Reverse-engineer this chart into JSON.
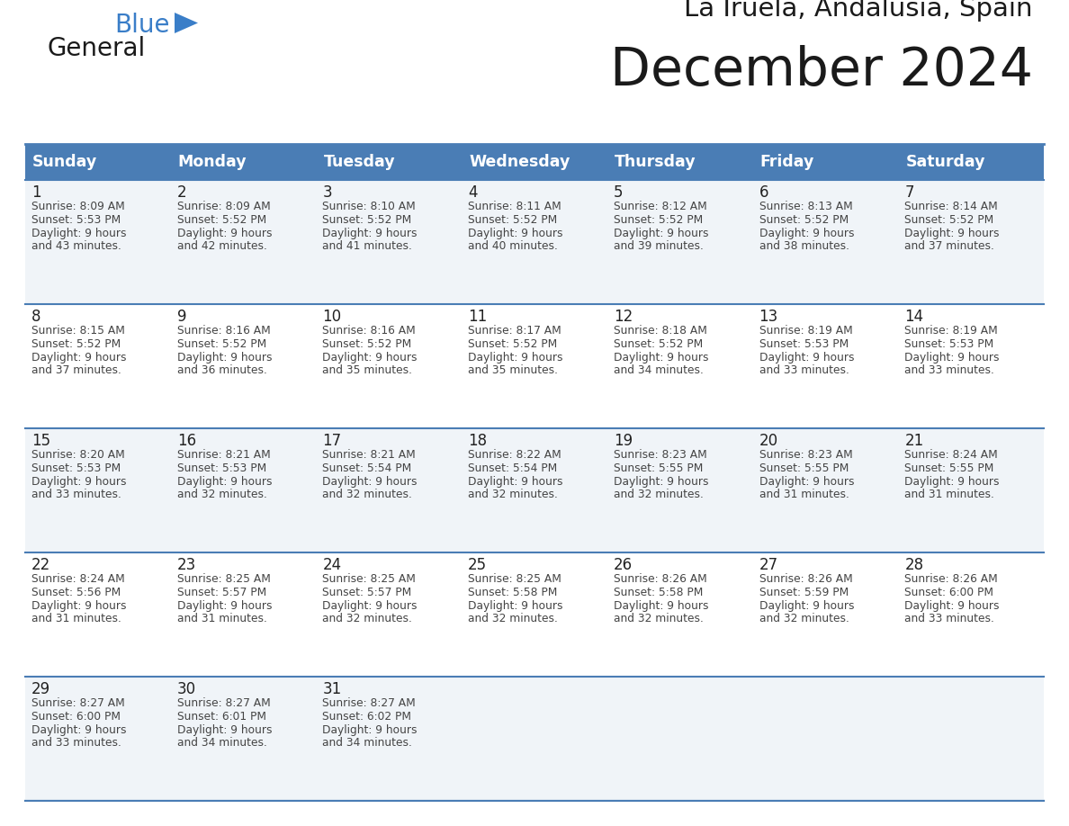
{
  "title": "December 2024",
  "subtitle": "La Iruela, Andalusia, Spain",
  "days_of_week": [
    "Sunday",
    "Monday",
    "Tuesday",
    "Wednesday",
    "Thursday",
    "Friday",
    "Saturday"
  ],
  "header_bg_color": "#4A7DB5",
  "header_text_color": "#FFFFFF",
  "cell_bg_light": "#F0F4F8",
  "cell_bg_white": "#FFFFFF",
  "cell_border_color": "#4A7DB5",
  "day_num_color": "#222222",
  "text_color": "#444444",
  "title_color": "#1a1a1a",
  "logo_general_color": "#1a1a1a",
  "logo_blue_color": "#3A7EC8",
  "weeks": [
    [
      {
        "day": 1,
        "sunrise": "8:09 AM",
        "sunset": "5:53 PM",
        "daylight_hours": 9,
        "daylight_min": 43
      },
      {
        "day": 2,
        "sunrise": "8:09 AM",
        "sunset": "5:52 PM",
        "daylight_hours": 9,
        "daylight_min": 42
      },
      {
        "day": 3,
        "sunrise": "8:10 AM",
        "sunset": "5:52 PM",
        "daylight_hours": 9,
        "daylight_min": 41
      },
      {
        "day": 4,
        "sunrise": "8:11 AM",
        "sunset": "5:52 PM",
        "daylight_hours": 9,
        "daylight_min": 40
      },
      {
        "day": 5,
        "sunrise": "8:12 AM",
        "sunset": "5:52 PM",
        "daylight_hours": 9,
        "daylight_min": 39
      },
      {
        "day": 6,
        "sunrise": "8:13 AM",
        "sunset": "5:52 PM",
        "daylight_hours": 9,
        "daylight_min": 38
      },
      {
        "day": 7,
        "sunrise": "8:14 AM",
        "sunset": "5:52 PM",
        "daylight_hours": 9,
        "daylight_min": 37
      }
    ],
    [
      {
        "day": 8,
        "sunrise": "8:15 AM",
        "sunset": "5:52 PM",
        "daylight_hours": 9,
        "daylight_min": 37
      },
      {
        "day": 9,
        "sunrise": "8:16 AM",
        "sunset": "5:52 PM",
        "daylight_hours": 9,
        "daylight_min": 36
      },
      {
        "day": 10,
        "sunrise": "8:16 AM",
        "sunset": "5:52 PM",
        "daylight_hours": 9,
        "daylight_min": 35
      },
      {
        "day": 11,
        "sunrise": "8:17 AM",
        "sunset": "5:52 PM",
        "daylight_hours": 9,
        "daylight_min": 35
      },
      {
        "day": 12,
        "sunrise": "8:18 AM",
        "sunset": "5:52 PM",
        "daylight_hours": 9,
        "daylight_min": 34
      },
      {
        "day": 13,
        "sunrise": "8:19 AM",
        "sunset": "5:53 PM",
        "daylight_hours": 9,
        "daylight_min": 33
      },
      {
        "day": 14,
        "sunrise": "8:19 AM",
        "sunset": "5:53 PM",
        "daylight_hours": 9,
        "daylight_min": 33
      }
    ],
    [
      {
        "day": 15,
        "sunrise": "8:20 AM",
        "sunset": "5:53 PM",
        "daylight_hours": 9,
        "daylight_min": 33
      },
      {
        "day": 16,
        "sunrise": "8:21 AM",
        "sunset": "5:53 PM",
        "daylight_hours": 9,
        "daylight_min": 32
      },
      {
        "day": 17,
        "sunrise": "8:21 AM",
        "sunset": "5:54 PM",
        "daylight_hours": 9,
        "daylight_min": 32
      },
      {
        "day": 18,
        "sunrise": "8:22 AM",
        "sunset": "5:54 PM",
        "daylight_hours": 9,
        "daylight_min": 32
      },
      {
        "day": 19,
        "sunrise": "8:23 AM",
        "sunset": "5:55 PM",
        "daylight_hours": 9,
        "daylight_min": 32
      },
      {
        "day": 20,
        "sunrise": "8:23 AM",
        "sunset": "5:55 PM",
        "daylight_hours": 9,
        "daylight_min": 31
      },
      {
        "day": 21,
        "sunrise": "8:24 AM",
        "sunset": "5:55 PM",
        "daylight_hours": 9,
        "daylight_min": 31
      }
    ],
    [
      {
        "day": 22,
        "sunrise": "8:24 AM",
        "sunset": "5:56 PM",
        "daylight_hours": 9,
        "daylight_min": 31
      },
      {
        "day": 23,
        "sunrise": "8:25 AM",
        "sunset": "5:57 PM",
        "daylight_hours": 9,
        "daylight_min": 31
      },
      {
        "day": 24,
        "sunrise": "8:25 AM",
        "sunset": "5:57 PM",
        "daylight_hours": 9,
        "daylight_min": 32
      },
      {
        "day": 25,
        "sunrise": "8:25 AM",
        "sunset": "5:58 PM",
        "daylight_hours": 9,
        "daylight_min": 32
      },
      {
        "day": 26,
        "sunrise": "8:26 AM",
        "sunset": "5:58 PM",
        "daylight_hours": 9,
        "daylight_min": 32
      },
      {
        "day": 27,
        "sunrise": "8:26 AM",
        "sunset": "5:59 PM",
        "daylight_hours": 9,
        "daylight_min": 32
      },
      {
        "day": 28,
        "sunrise": "8:26 AM",
        "sunset": "6:00 PM",
        "daylight_hours": 9,
        "daylight_min": 33
      }
    ],
    [
      {
        "day": 29,
        "sunrise": "8:27 AM",
        "sunset": "6:00 PM",
        "daylight_hours": 9,
        "daylight_min": 33
      },
      {
        "day": 30,
        "sunrise": "8:27 AM",
        "sunset": "6:01 PM",
        "daylight_hours": 9,
        "daylight_min": 34
      },
      {
        "day": 31,
        "sunrise": "8:27 AM",
        "sunset": "6:02 PM",
        "daylight_hours": 9,
        "daylight_min": 34
      },
      null,
      null,
      null,
      null
    ]
  ]
}
